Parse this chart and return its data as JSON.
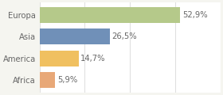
{
  "categories": [
    "Europa",
    "Asia",
    "America",
    "Africa"
  ],
  "values": [
    52.9,
    26.5,
    14.7,
    5.9
  ],
  "labels": [
    "52,9%",
    "26,5%",
    "14,7%",
    "5,9%"
  ],
  "bar_colors": [
    "#b5c98a",
    "#7090b8",
    "#f0c060",
    "#e8a878"
  ],
  "background_color": "#f5f5f0",
  "plot_bg_color": "#ffffff",
  "xlim": [
    0,
    68
  ],
  "bar_height": 0.72,
  "label_fontsize": 7.2,
  "tick_fontsize": 7.2,
  "label_color": "#666666",
  "grid_color": "#e0e0e0"
}
